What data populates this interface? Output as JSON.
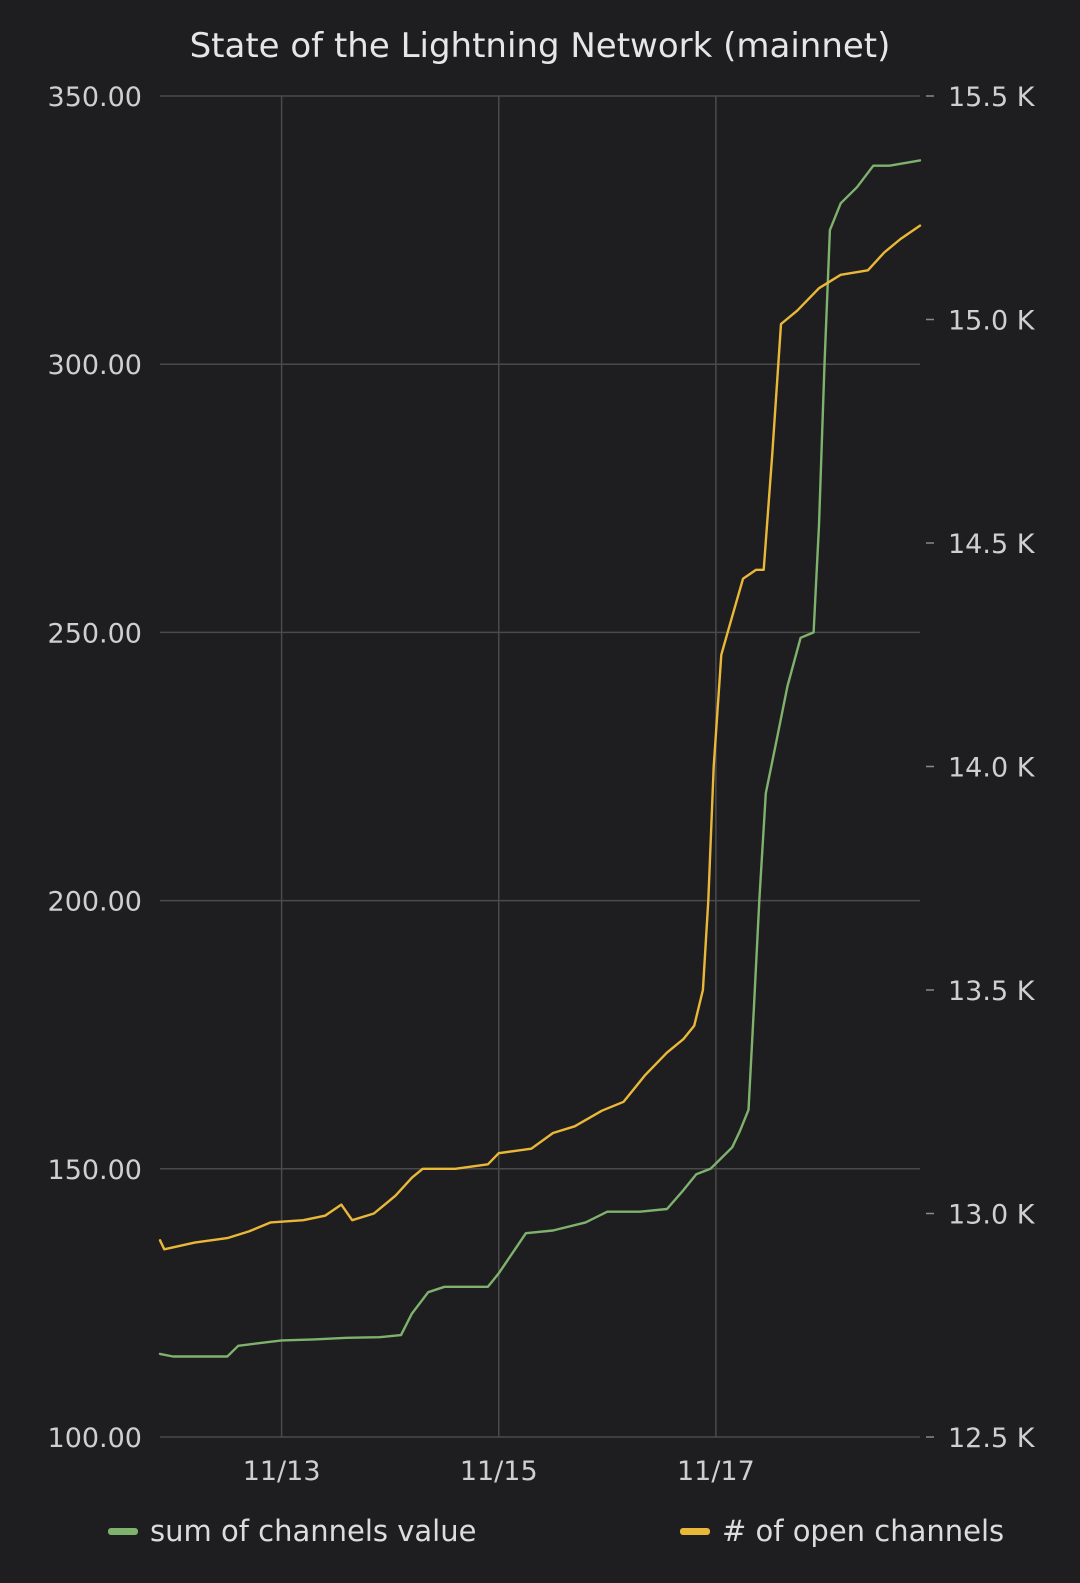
{
  "chart_data": {
    "type": "line",
    "title": "State of the Lightning Network (mainnet)",
    "x_ticks": [
      "11/13",
      "11/15",
      "11/17"
    ],
    "x_tick_values": [
      1.0,
      3.0,
      5.0
    ],
    "x_range": [
      -0.12,
      6.88
    ],
    "y_left": {
      "ticks": [
        "100.00",
        "150.00",
        "200.00",
        "250.00",
        "300.00",
        "350.00"
      ],
      "tick_values": [
        100,
        150,
        200,
        250,
        300,
        350
      ],
      "range": [
        100,
        350
      ]
    },
    "y_right": {
      "ticks": [
        "12.5 K",
        "13.0 K",
        "13.5 K",
        "14.0 K",
        "14.5 K",
        "15.0 K",
        "15.5 K"
      ],
      "tick_values": [
        12500,
        13000,
        13500,
        14000,
        14500,
        15000,
        15500
      ],
      "range": [
        12500,
        15500
      ]
    },
    "grid": true,
    "legend_position": "bottom",
    "series": [
      {
        "name": "sum of channels value",
        "axis": "left",
        "color": "#7eb26d",
        "points": [
          [
            -0.12,
            115.5
          ],
          [
            0.0,
            115
          ],
          [
            0.5,
            115
          ],
          [
            0.6,
            117
          ],
          [
            0.8,
            117.5
          ],
          [
            1.0,
            118
          ],
          [
            1.3,
            118.2
          ],
          [
            1.6,
            118.5
          ],
          [
            1.9,
            118.6
          ],
          [
            2.1,
            119
          ],
          [
            2.2,
            123
          ],
          [
            2.35,
            127
          ],
          [
            2.5,
            128
          ],
          [
            2.9,
            128
          ],
          [
            3.0,
            130.5
          ],
          [
            3.15,
            135
          ],
          [
            3.25,
            138
          ],
          [
            3.5,
            138.5
          ],
          [
            3.8,
            140
          ],
          [
            4.0,
            142
          ],
          [
            4.3,
            142
          ],
          [
            4.55,
            142.5
          ],
          [
            4.7,
            146
          ],
          [
            4.82,
            149
          ],
          [
            4.95,
            150
          ],
          [
            5.05,
            152
          ],
          [
            5.15,
            154
          ],
          [
            5.22,
            157
          ],
          [
            5.3,
            161
          ],
          [
            5.35,
            180
          ],
          [
            5.4,
            200
          ],
          [
            5.46,
            220
          ],
          [
            5.56,
            230
          ],
          [
            5.66,
            240
          ],
          [
            5.78,
            249
          ],
          [
            5.9,
            250
          ],
          [
            5.95,
            270
          ],
          [
            6.0,
            300
          ],
          [
            6.05,
            325
          ],
          [
            6.15,
            330
          ],
          [
            6.3,
            333
          ],
          [
            6.45,
            337
          ],
          [
            6.6,
            337
          ],
          [
            6.88,
            338
          ]
        ]
      },
      {
        "name": "# of open channels",
        "axis": "right",
        "color": "#eab839",
        "points": [
          [
            -0.12,
            12940
          ],
          [
            -0.08,
            12920
          ],
          [
            0.2,
            12935
          ],
          [
            0.5,
            12945
          ],
          [
            0.7,
            12960
          ],
          [
            0.9,
            12980
          ],
          [
            1.2,
            12985
          ],
          [
            1.4,
            12995
          ],
          [
            1.55,
            13020
          ],
          [
            1.65,
            12985
          ],
          [
            1.85,
            13000
          ],
          [
            2.05,
            13040
          ],
          [
            2.2,
            13080
          ],
          [
            2.3,
            13100
          ],
          [
            2.6,
            13100
          ],
          [
            2.9,
            13110
          ],
          [
            3.0,
            13135
          ],
          [
            3.15,
            13140
          ],
          [
            3.3,
            13145
          ],
          [
            3.5,
            13180
          ],
          [
            3.7,
            13195
          ],
          [
            3.95,
            13230
          ],
          [
            4.15,
            13250
          ],
          [
            4.35,
            13310
          ],
          [
            4.55,
            13360
          ],
          [
            4.7,
            13390
          ],
          [
            4.8,
            13420
          ],
          [
            4.88,
            13500
          ],
          [
            4.93,
            13700
          ],
          [
            4.98,
            14000
          ],
          [
            5.05,
            14250
          ],
          [
            5.12,
            14310
          ],
          [
            5.25,
            14420
          ],
          [
            5.37,
            14440
          ],
          [
            5.44,
            14440
          ],
          [
            5.52,
            14700
          ],
          [
            5.6,
            14990
          ],
          [
            5.75,
            15020
          ],
          [
            5.95,
            15070
          ],
          [
            6.15,
            15100
          ],
          [
            6.4,
            15110
          ],
          [
            6.55,
            15150
          ],
          [
            6.7,
            15180
          ],
          [
            6.88,
            15210
          ]
        ]
      }
    ]
  }
}
